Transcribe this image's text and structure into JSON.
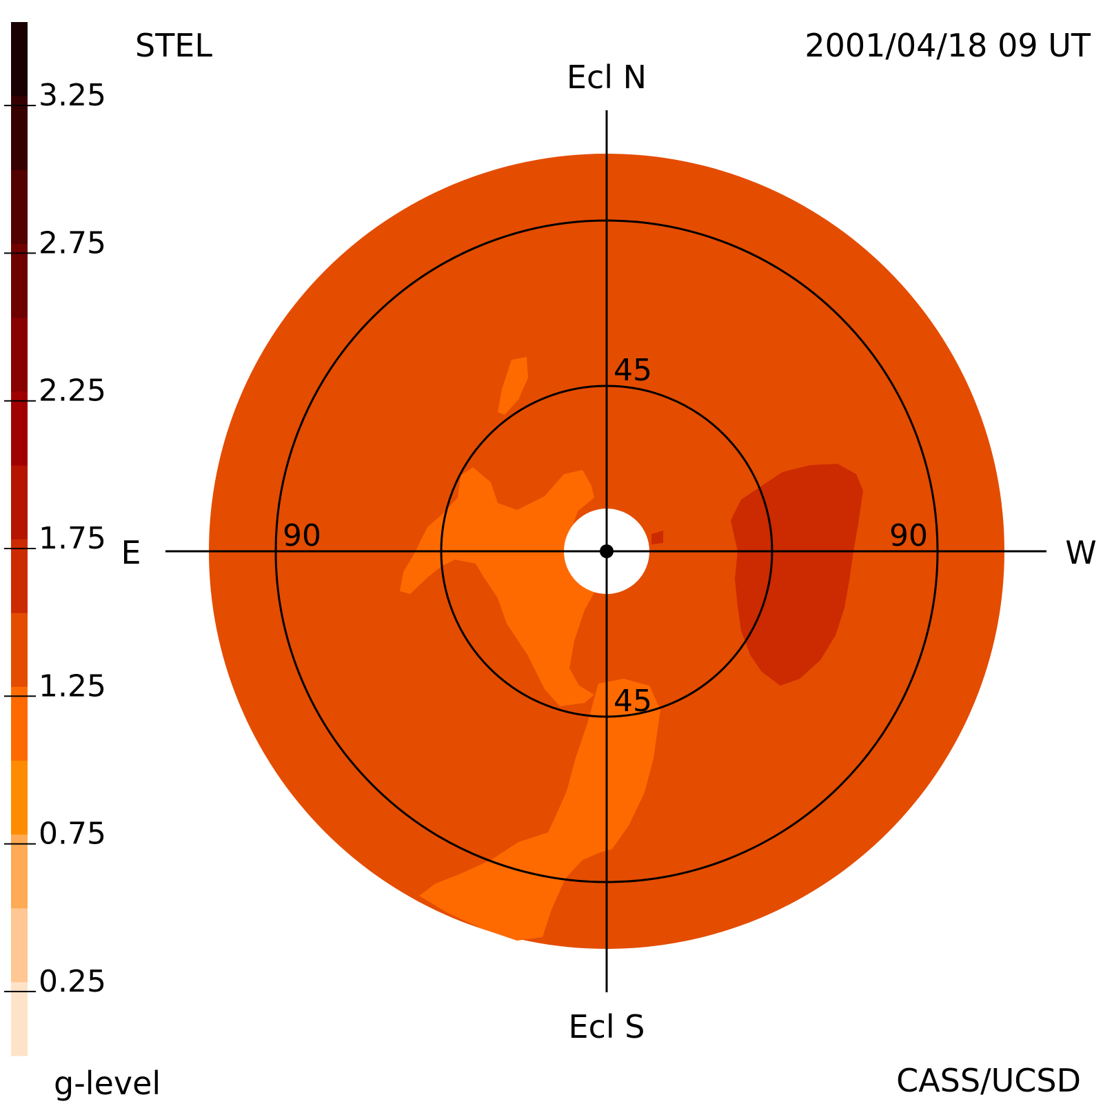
{
  "header": {
    "left": "STEL",
    "right": "2001/04/18 09 UT"
  },
  "footer": {
    "left": "g-level",
    "right": "CASS/UCSD"
  },
  "directions": {
    "north": "Ecl N",
    "south": "Ecl S",
    "east": "E",
    "west": "W"
  },
  "rings": {
    "inner_north": "45",
    "inner_south": "45",
    "outer_east": "90",
    "outer_west": "90"
  },
  "colors": {
    "background_level": "#e44c00",
    "bright_level": "#ff6a00",
    "dark_level": "#cc2a00",
    "sun_disk": "#ffffff",
    "line": "#000000"
  },
  "chart_data": {
    "type": "heatmap",
    "projection": "polar sky map centered on the Sun",
    "rings_deg": [
      45,
      90
    ],
    "colorbar": {
      "label": "g-level",
      "range": [
        0,
        3.5
      ],
      "tick_values": [
        3.25,
        2.75,
        2.25,
        1.75,
        1.25,
        0.75,
        0.25
      ],
      "tick_labels": [
        "3.25",
        "2.75",
        "2.25",
        "1.75",
        "1.25",
        "0.75",
        "0.25"
      ],
      "bins": [
        {
          "min": 0.0,
          "max": 0.25,
          "color": "#ffe3c8"
        },
        {
          "min": 0.25,
          "max": 0.5,
          "color": "#ffc793"
        },
        {
          "min": 0.5,
          "max": 0.75,
          "color": "#ffaa55"
        },
        {
          "min": 0.75,
          "max": 1.0,
          "color": "#ff8c00"
        },
        {
          "min": 1.0,
          "max": 1.25,
          "color": "#ff6a00"
        },
        {
          "min": 1.25,
          "max": 1.5,
          "color": "#e44c00"
        },
        {
          "min": 1.5,
          "max": 1.75,
          "color": "#cc2a00"
        },
        {
          "min": 1.75,
          "max": 2.0,
          "color": "#b41400"
        },
        {
          "min": 2.0,
          "max": 2.25,
          "color": "#a00000"
        },
        {
          "min": 2.25,
          "max": 2.5,
          "color": "#880000"
        },
        {
          "min": 2.5,
          "max": 2.75,
          "color": "#6e0000"
        },
        {
          "min": 2.75,
          "max": 3.0,
          "color": "#520000"
        },
        {
          "min": 3.0,
          "max": 3.25,
          "color": "#360000"
        },
        {
          "min": 3.25,
          "max": 3.5,
          "color": "#1a0000"
        }
      ]
    }
  }
}
